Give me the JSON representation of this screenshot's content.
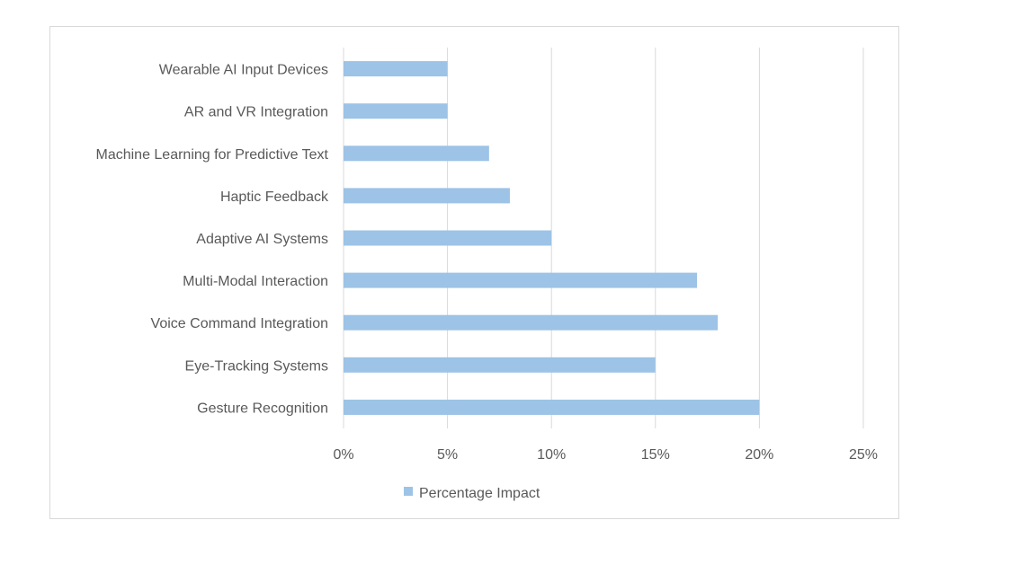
{
  "chart_data": {
    "type": "bar",
    "orientation": "horizontal",
    "categories": [
      "Gesture Recognition",
      "Eye-Tracking Systems",
      "Voice Command Integration",
      "Multi-Modal Interaction",
      "Adaptive AI Systems",
      "Haptic Feedback",
      "Machine Learning for Predictive Text",
      "AR and VR Integration",
      "Wearable AI Input Devices"
    ],
    "series": [
      {
        "name": "Percentage Impact",
        "values": [
          20,
          15,
          18,
          17,
          10,
          8,
          7,
          5,
          5
        ]
      }
    ],
    "xlim": [
      0,
      25
    ],
    "xticks": [
      "0%",
      "5%",
      "10%",
      "15%",
      "20%",
      "25%"
    ],
    "title": "",
    "xlabel": "",
    "ylabel": "",
    "grid": "vertical",
    "legend": "bottom",
    "bar_color": "#9dc3e6"
  }
}
